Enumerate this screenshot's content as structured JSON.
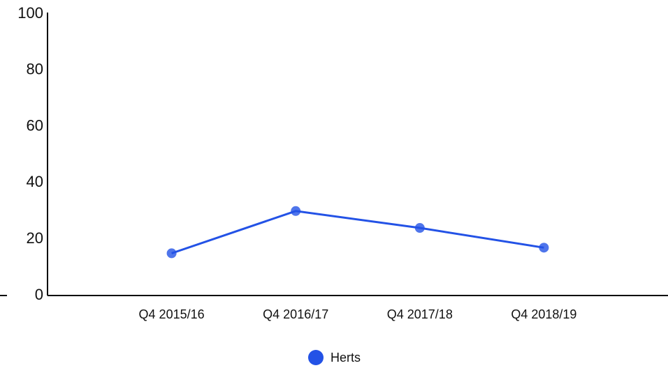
{
  "chart_data": {
    "type": "line",
    "categories": [
      "Q4 2015/16",
      "Q4 2016/17",
      "Q4 2017/18",
      "Q4 2018/19"
    ],
    "series": [
      {
        "name": "Herts",
        "color": "#2352e6",
        "values": [
          15,
          30,
          24,
          17
        ]
      }
    ],
    "ylim": [
      0,
      100
    ],
    "yticks": [
      0,
      20,
      40,
      60,
      80,
      100
    ],
    "grid": false,
    "legend": "bottom"
  }
}
